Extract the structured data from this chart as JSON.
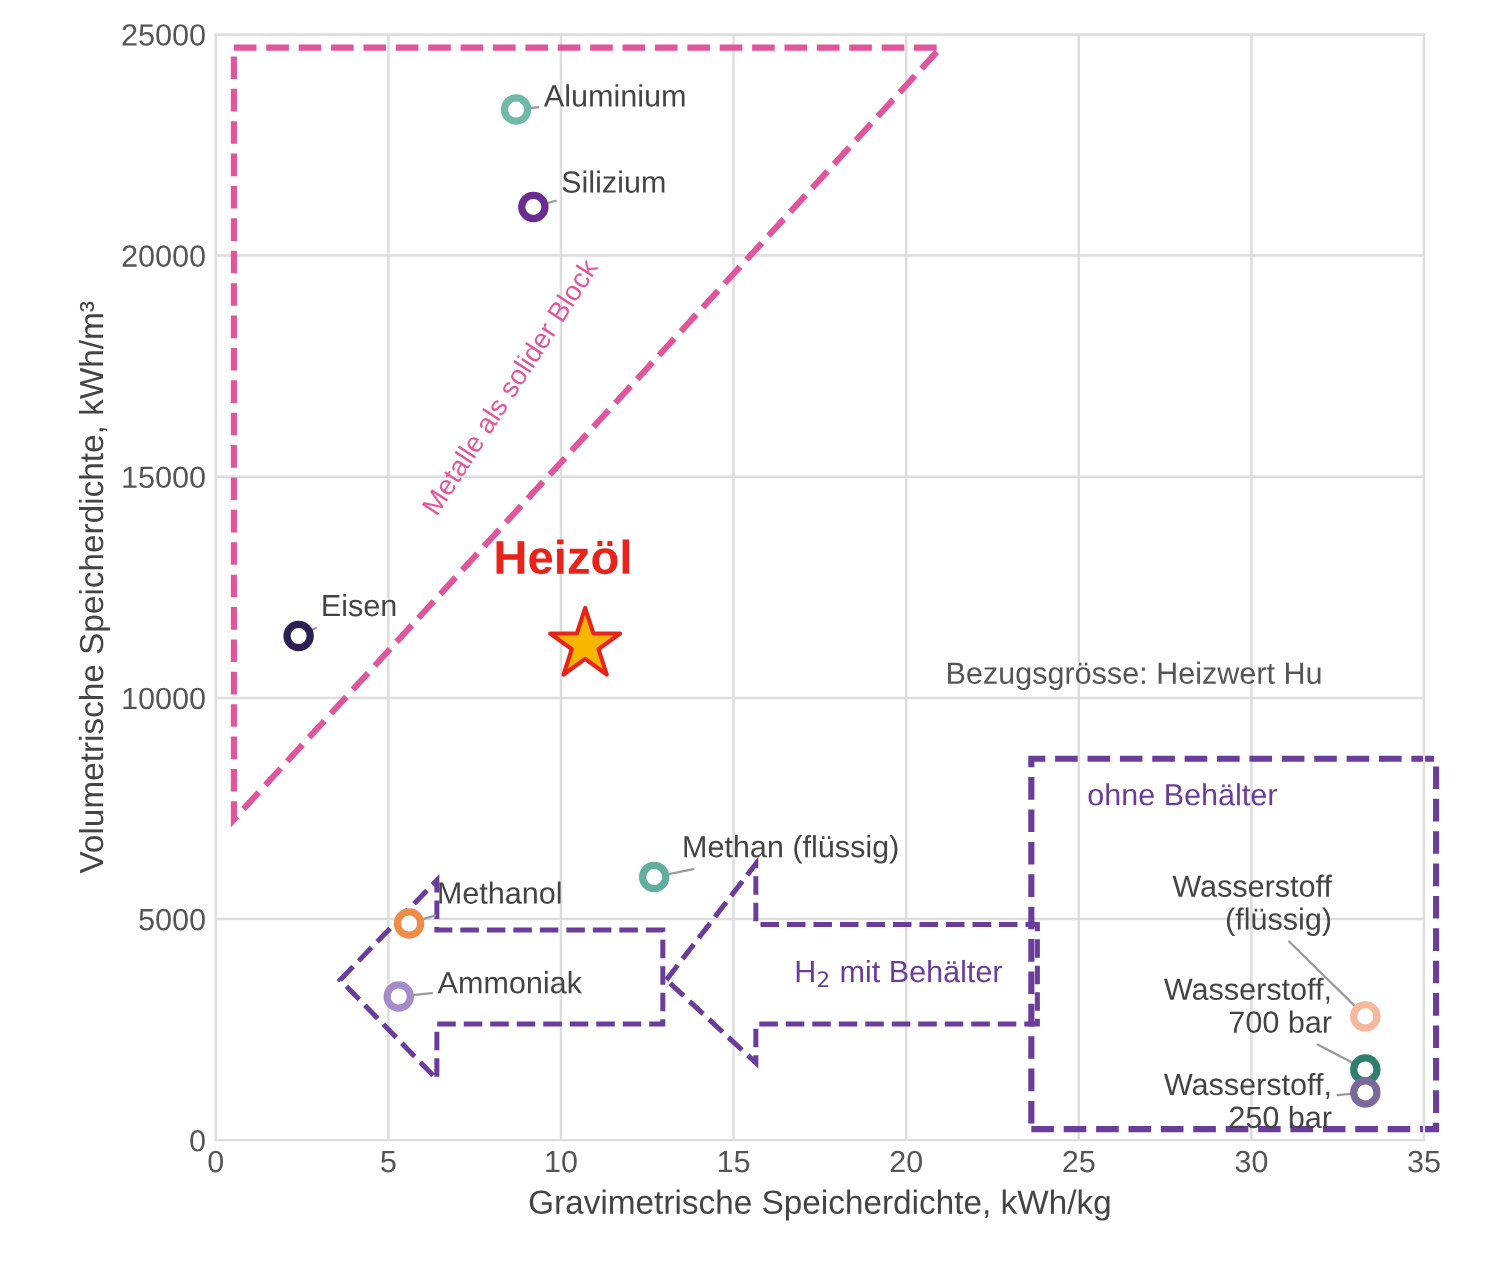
{
  "chart_data": {
    "type": "scatter",
    "xlabel": "Gravimetrische Speicherdichte, kWh/kg",
    "ylabel": "Volumetrische Speicherdichte, kWh/m³",
    "xlim": [
      0,
      35
    ],
    "ylim": [
      0,
      25000
    ],
    "xticks": [
      0,
      5,
      10,
      15,
      20,
      25,
      30,
      35
    ],
    "yticks": [
      0,
      5000,
      10000,
      15000,
      20000,
      25000
    ],
    "grid": true,
    "marker": "circle",
    "series": [
      {
        "x": [
          8.7,
          9.2,
          2.4,
          12.7,
          5.6,
          5.3,
          33.3,
          33.3,
          33.3
        ],
        "values": [
          23300,
          21100,
          11400,
          5950,
          4900,
          3250,
          2800,
          1600,
          1080
        ],
        "colors": [
          "#6fb9a8",
          "#6a2d8f",
          "#2b2050",
          "#5fae9e",
          "#f08c4a",
          "#a58cc8",
          "#f4b89c",
          "#2f7f6f",
          "#7a6a9a"
        ]
      },
      {
        "type": "scatter",
        "marker": "star",
        "x": [
          10.7
        ],
        "values": [
          11200
        ],
        "color": "#f7b500"
      }
    ],
    "annotations": [
      {
        "text": "Aluminium",
        "x": 8.7,
        "y": 23300
      },
      {
        "text": "Silizium",
        "x": 9.2,
        "y": 21100
      },
      {
        "text": "Eisen",
        "x": 2.4,
        "y": 11400
      },
      {
        "text": "Methan (flüssig)",
        "x": 12.7,
        "y": 5950
      },
      {
        "text": "Methanol",
        "x": 5.6,
        "y": 4900
      },
      {
        "text": "Ammoniak",
        "x": 5.3,
        "y": 3250
      },
      {
        "text": "Wasserstoff\n(flüssig)",
        "x": 33.3,
        "y": 2800
      },
      {
        "text": "Wasserstoff,\n700 bar",
        "x": 33.3,
        "y": 1600
      },
      {
        "text": "Wasserstoff,\n250 bar",
        "x": 33.3,
        "y": 1080
      },
      {
        "text": "Heizöl",
        "x": 10.7,
        "y": 11200
      },
      "Metalle als solider Block",
      "Bezugsgrösse: Heizwert Hu",
      "H$_{2}$ mit Behälter",
      "ohne Behälter"
    ]
  }
}
